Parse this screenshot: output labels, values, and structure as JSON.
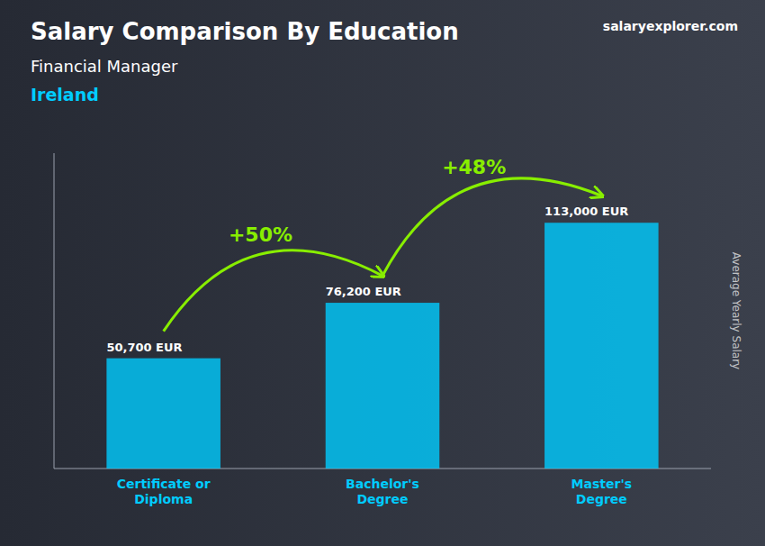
{
  "chart_data": {
    "type": "bar",
    "title": "Salary Comparison By Education",
    "subtitle": "Financial Manager",
    "ylabel": "Average Yearly Salary",
    "categories": [
      "Certificate or\nDiploma",
      "Bachelor's\nDegree",
      "Master's\nDegree"
    ],
    "values": [
      50700,
      76200,
      113000
    ],
    "value_labels": [
      "50,700 EUR",
      "76,200 EUR",
      "113,000 EUR"
    ],
    "data_labels": true,
    "color": "#00ccff",
    "ylim": [
      0,
      145000
    ],
    "tick_labels": "x",
    "grid": false,
    "annotations": [
      {
        "text": "Ireland"
      },
      {
        "text": "salaryexplorer.com"
      },
      {
        "text": "+50%",
        "from": 0,
        "to": 1,
        "color": "#88ee00"
      },
      {
        "text": "+48%",
        "from": 1,
        "to": 2,
        "color": "#88ee00"
      }
    ]
  }
}
